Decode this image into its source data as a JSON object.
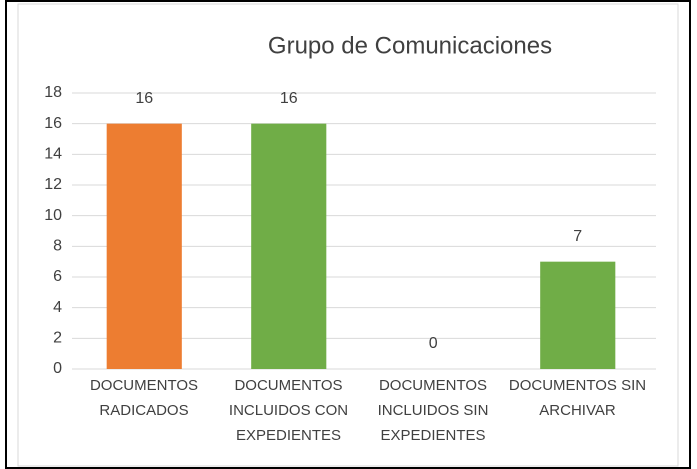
{
  "chart_data": {
    "type": "bar",
    "title": "Grupo de Comunicaciones",
    "categories": [
      "DOCUMENTOS RADICADOS",
      "DOCUMENTOS INCLUIDOS CON EXPEDIENTES",
      "DOCUMENTOS INCLUIDOS SIN EXPEDIENTES",
      "DOCUMENTOS SIN ARCHIVAR"
    ],
    "values": [
      16,
      16,
      0,
      7
    ],
    "colors": [
      "#ed7d31",
      "#70ad47",
      "#70ad47",
      "#70ad47"
    ],
    "ylim": [
      0,
      18
    ],
    "yticks": [
      0,
      2,
      4,
      6,
      8,
      10,
      12,
      14,
      16,
      18
    ],
    "grid": true
  }
}
